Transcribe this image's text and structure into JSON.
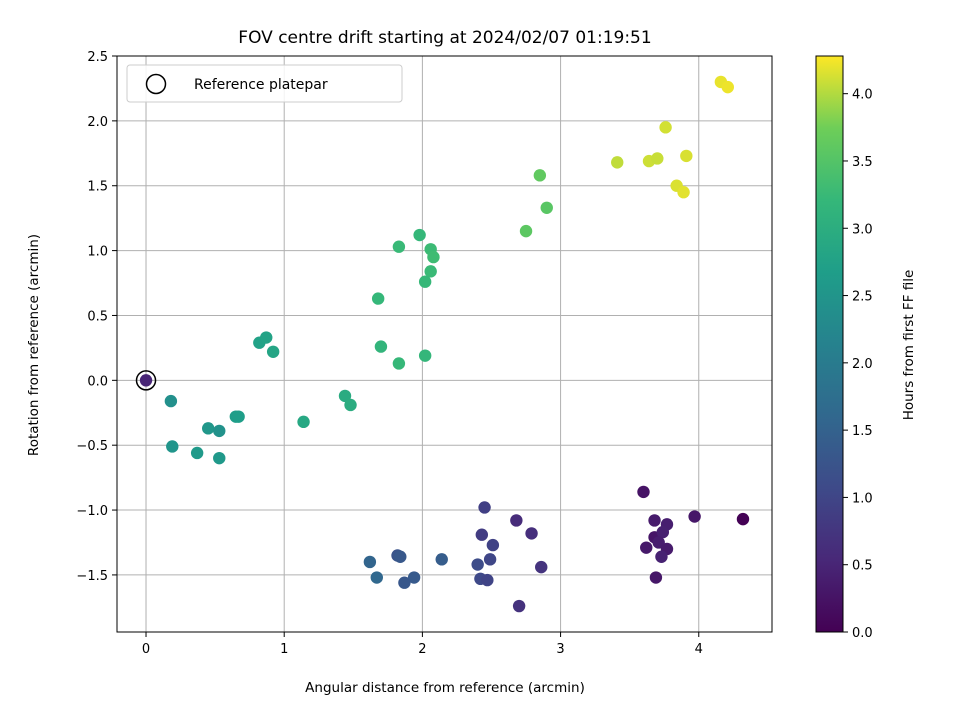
{
  "chart_data": {
    "type": "scatter",
    "title": "FOV centre drift starting at 2024/02/07 01:19:51",
    "xlabel": "Angular distance from reference (arcmin)",
    "ylabel": "Rotation from reference (arcmin)",
    "xlim": [
      -0.21,
      4.53
    ],
    "ylim": [
      -1.94,
      2.5
    ],
    "xticks": [
      0,
      1,
      2,
      3,
      4
    ],
    "xtick_labels": [
      "0",
      "1",
      "2",
      "3",
      "4"
    ],
    "yticks": [
      -1.5,
      -1.0,
      -0.5,
      0.0,
      0.5,
      1.0,
      1.5,
      2.0,
      2.5
    ],
    "ytick_labels": [
      "−1.5",
      "−1.0",
      "−0.5",
      "0.0",
      "0.5",
      "1.0",
      "1.5",
      "2.0",
      "2.5"
    ],
    "grid": true,
    "legend": {
      "placement": "top-left",
      "entries": [
        "Reference platepar"
      ]
    },
    "reference_point": {
      "x": 0,
      "y": 0
    },
    "colorbar": {
      "label": "Hours from first FF file",
      "colormap": "viridis",
      "range": [
        0,
        4.28
      ],
      "ticks": [
        0,
        0.5,
        1.0,
        1.5,
        2.0,
        2.5,
        3.0,
        3.5,
        4.0
      ],
      "tick_labels": [
        "0.0",
        "0.5",
        "1.0",
        "1.5",
        "2.0",
        "2.5",
        "3.0",
        "3.5",
        "4.0"
      ]
    },
    "points": [
      {
        "x": 4.32,
        "y": -1.07,
        "hours": 0.02
      },
      {
        "x": 3.97,
        "y": -1.05,
        "hours": 0.3
      },
      {
        "x": 3.6,
        "y": -0.86,
        "hours": 0.25
      },
      {
        "x": 3.68,
        "y": -1.08,
        "hours": 0.35
      },
      {
        "x": 3.77,
        "y": -1.11,
        "hours": 0.4
      },
      {
        "x": 3.68,
        "y": -1.21,
        "hours": 0.28
      },
      {
        "x": 3.74,
        "y": -1.17,
        "hours": 0.42
      },
      {
        "x": 3.71,
        "y": -1.25,
        "hours": 0.38
      },
      {
        "x": 3.62,
        "y": -1.29,
        "hours": 0.33
      },
      {
        "x": 3.77,
        "y": -1.3,
        "hours": 0.36
      },
      {
        "x": 3.73,
        "y": -1.36,
        "hours": 0.45
      },
      {
        "x": 3.69,
        "y": -1.52,
        "hours": 0.3
      },
      {
        "x": 2.68,
        "y": -1.08,
        "hours": 0.6
      },
      {
        "x": 2.79,
        "y": -1.18,
        "hours": 0.65
      },
      {
        "x": 2.86,
        "y": -1.44,
        "hours": 0.72
      },
      {
        "x": 2.7,
        "y": -1.74,
        "hours": 0.7
      },
      {
        "x": 2.45,
        "y": -0.98,
        "hours": 0.9
      },
      {
        "x": 2.43,
        "y": -1.19,
        "hours": 0.85
      },
      {
        "x": 2.51,
        "y": -1.27,
        "hours": 0.95
      },
      {
        "x": 2.49,
        "y": -1.38,
        "hours": 1.0
      },
      {
        "x": 2.4,
        "y": -1.42,
        "hours": 1.1
      },
      {
        "x": 2.42,
        "y": -1.53,
        "hours": 1.05
      },
      {
        "x": 2.47,
        "y": -1.54,
        "hours": 0.98
      },
      {
        "x": 2.14,
        "y": -1.38,
        "hours": 1.4
      },
      {
        "x": 1.94,
        "y": -1.52,
        "hours": 1.35
      },
      {
        "x": 1.87,
        "y": -1.56,
        "hours": 1.3
      },
      {
        "x": 1.82,
        "y": -1.35,
        "hours": 1.25
      },
      {
        "x": 1.84,
        "y": -1.36,
        "hours": 1.32
      },
      {
        "x": 1.62,
        "y": -1.4,
        "hours": 1.55
      },
      {
        "x": 1.67,
        "y": -1.52,
        "hours": 1.6
      },
      {
        "x": 0.18,
        "y": -0.16,
        "hours": 2.4
      },
      {
        "x": 0.19,
        "y": -0.51,
        "hours": 2.5
      },
      {
        "x": 0.37,
        "y": -0.56,
        "hours": 2.6
      },
      {
        "x": 0.45,
        "y": -0.37,
        "hours": 2.55
      },
      {
        "x": 0.53,
        "y": -0.39,
        "hours": 2.45
      },
      {
        "x": 0.53,
        "y": -0.6,
        "hours": 2.58
      },
      {
        "x": 0.65,
        "y": -0.28,
        "hours": 2.65
      },
      {
        "x": 0.67,
        "y": -0.28,
        "hours": 2.68
      },
      {
        "x": 0.82,
        "y": 0.29,
        "hours": 2.75
      },
      {
        "x": 0.87,
        "y": 0.33,
        "hours": 2.78
      },
      {
        "x": 0.92,
        "y": 0.22,
        "hours": 2.82
      },
      {
        "x": 1.14,
        "y": -0.32,
        "hours": 2.88
      },
      {
        "x": 1.44,
        "y": -0.12,
        "hours": 2.95
      },
      {
        "x": 1.48,
        "y": -0.19,
        "hours": 2.98
      },
      {
        "x": 1.7,
        "y": 0.26,
        "hours": 3.15
      },
      {
        "x": 1.83,
        "y": 0.13,
        "hours": 3.22
      },
      {
        "x": 2.02,
        "y": 0.19,
        "hours": 3.18
      },
      {
        "x": 1.68,
        "y": 0.63,
        "hours": 3.2
      },
      {
        "x": 1.83,
        "y": 1.03,
        "hours": 3.25
      },
      {
        "x": 1.98,
        "y": 1.12,
        "hours": 3.2
      },
      {
        "x": 2.06,
        "y": 1.01,
        "hours": 3.28
      },
      {
        "x": 2.08,
        "y": 0.95,
        "hours": 3.3
      },
      {
        "x": 2.06,
        "y": 0.84,
        "hours": 3.26
      },
      {
        "x": 2.02,
        "y": 0.76,
        "hours": 3.22
      },
      {
        "x": 2.75,
        "y": 1.15,
        "hours": 3.58
      },
      {
        "x": 2.85,
        "y": 1.58,
        "hours": 3.62
      },
      {
        "x": 2.9,
        "y": 1.33,
        "hours": 3.55
      },
      {
        "x": 3.41,
        "y": 1.68,
        "hours": 4.05
      },
      {
        "x": 3.64,
        "y": 1.69,
        "hours": 4.1
      },
      {
        "x": 3.7,
        "y": 1.71,
        "hours": 4.08
      },
      {
        "x": 3.76,
        "y": 1.95,
        "hours": 4.12
      },
      {
        "x": 3.84,
        "y": 1.5,
        "hours": 4.15
      },
      {
        "x": 3.89,
        "y": 1.45,
        "hours": 4.18
      },
      {
        "x": 3.91,
        "y": 1.73,
        "hours": 4.14
      },
      {
        "x": 4.16,
        "y": 2.3,
        "hours": 4.2
      },
      {
        "x": 4.21,
        "y": 2.26,
        "hours": 4.22
      }
    ]
  }
}
